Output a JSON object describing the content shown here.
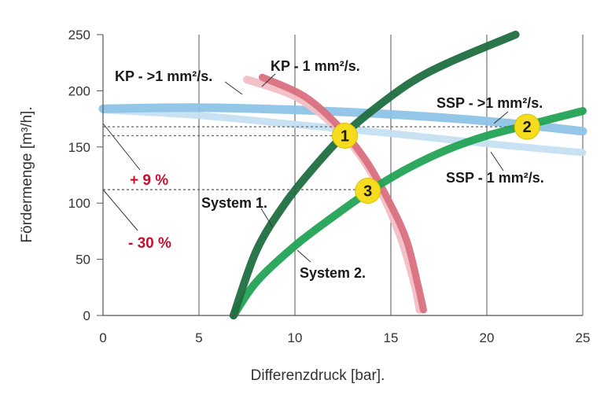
{
  "chart_data": {
    "type": "line",
    "xlabel": "Differenzdruck [bar].",
    "ylabel": "Fördermenge [m³/h].",
    "xlim": [
      0,
      25
    ],
    "ylim": [
      0,
      250
    ],
    "xticks": [
      "0",
      "5",
      "10",
      "15",
      "20",
      "25"
    ],
    "yticks": [
      "0",
      "50",
      "100",
      "150",
      "200",
      "250"
    ],
    "grid": "vertical",
    "series": [
      {
        "name": "KP - >1 mm²/s.",
        "color": "#f2bfc6",
        "x": [
          7.5,
          10,
          12,
          13.5,
          14.5,
          15.5,
          16.2,
          16.5
        ],
        "y": [
          210,
          195,
          170,
          140,
          110,
          70,
          30,
          5
        ]
      },
      {
        "name": "KP - 1 mm²/s.",
        "color": "#d9707f",
        "x": [
          8.3,
          10.5,
          12.3,
          13.7,
          14.8,
          15.8,
          16.4,
          16.7
        ],
        "y": [
          212,
          195,
          168,
          138,
          105,
          68,
          28,
          5
        ]
      },
      {
        "name": "SSP - >1 mm²/s.",
        "color": "#8ec4e6",
        "x": [
          0,
          5,
          10,
          15,
          20,
          25
        ],
        "y": [
          184,
          185,
          183,
          179,
          173,
          164
        ]
      },
      {
        "name": "SSP - 1 mm²/s.",
        "color": "#c5e0f3",
        "x": [
          0,
          5,
          10,
          15,
          20,
          25
        ],
        "y": [
          183,
          178,
          170,
          162,
          153,
          145
        ]
      },
      {
        "name": "System 1.",
        "color": "#1f6e3f",
        "x": [
          6.8,
          8,
          9.5,
          11,
          12.5,
          14,
          16,
          18,
          21.5
        ],
        "y": [
          0,
          58,
          100,
          132,
          160,
          182,
          207,
          225,
          250
        ]
      },
      {
        "name": "System 2.",
        "color": "#22a355",
        "x": [
          6.8,
          8,
          10,
          12,
          14,
          16,
          18,
          20,
          22,
          25
        ],
        "y": [
          0,
          30,
          62,
          88,
          112,
          132,
          148,
          160,
          169,
          182
        ]
      }
    ],
    "reference_lines": [
      {
        "x_end": 22,
        "y": 168
      },
      {
        "x_end": 12.5,
        "y": 160
      },
      {
        "x_end": 13.8,
        "y": 112
      }
    ],
    "markers": [
      {
        "label": "1",
        "x": 12.6,
        "y": 160
      },
      {
        "label": "2",
        "x": 22.1,
        "y": 168
      },
      {
        "label": "3",
        "x": 13.8,
        "y": 111
      }
    ],
    "annotations": [
      {
        "text": "+ 9 %",
        "color": "#c8102e"
      },
      {
        "text": "- 30 %",
        "color": "#c8102e"
      }
    ]
  }
}
